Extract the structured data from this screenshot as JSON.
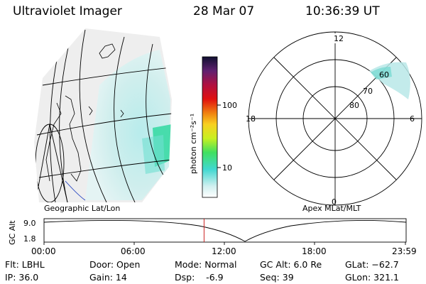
{
  "header": {
    "instrument": "Ultraviolet Imager",
    "date": "28 Mar 07",
    "time": "10:36:39 UT"
  },
  "colorbar": {
    "label": "photon cm⁻²s⁻¹",
    "ticks": [
      "100",
      "10"
    ],
    "scale": "log"
  },
  "panels": {
    "left_label": "Geographic Lat/Lon",
    "right_label": "Apex  MLat/MLT"
  },
  "polar_plot": {
    "mlt_labels": {
      "top": "12",
      "bottom": "0",
      "left": "18",
      "right": "6"
    },
    "lat_labels": [
      "60",
      "70",
      "80"
    ]
  },
  "timeline": {
    "y_label": "GC Alt",
    "y_ticks": [
      "9.0",
      "1.8"
    ],
    "x_ticks": [
      "00:00",
      "06:00",
      "12:00",
      "18:00",
      "23:59"
    ],
    "current_time_fraction": 0.442,
    "marker_color": "#cc2222"
  },
  "info": {
    "flt": "Flt: LBHL",
    "ip": "IP: 36.0",
    "door": "Door: Open",
    "gain": "Gain: 14",
    "mode": "Mode: Normal",
    "dsp": "Dsp:    -6.9",
    "gcalt": "GC Alt: 6.0 Re",
    "seq": "Seq: 39",
    "glat": "GLat: −62.7",
    "glon": "GLon: 321.1"
  }
}
